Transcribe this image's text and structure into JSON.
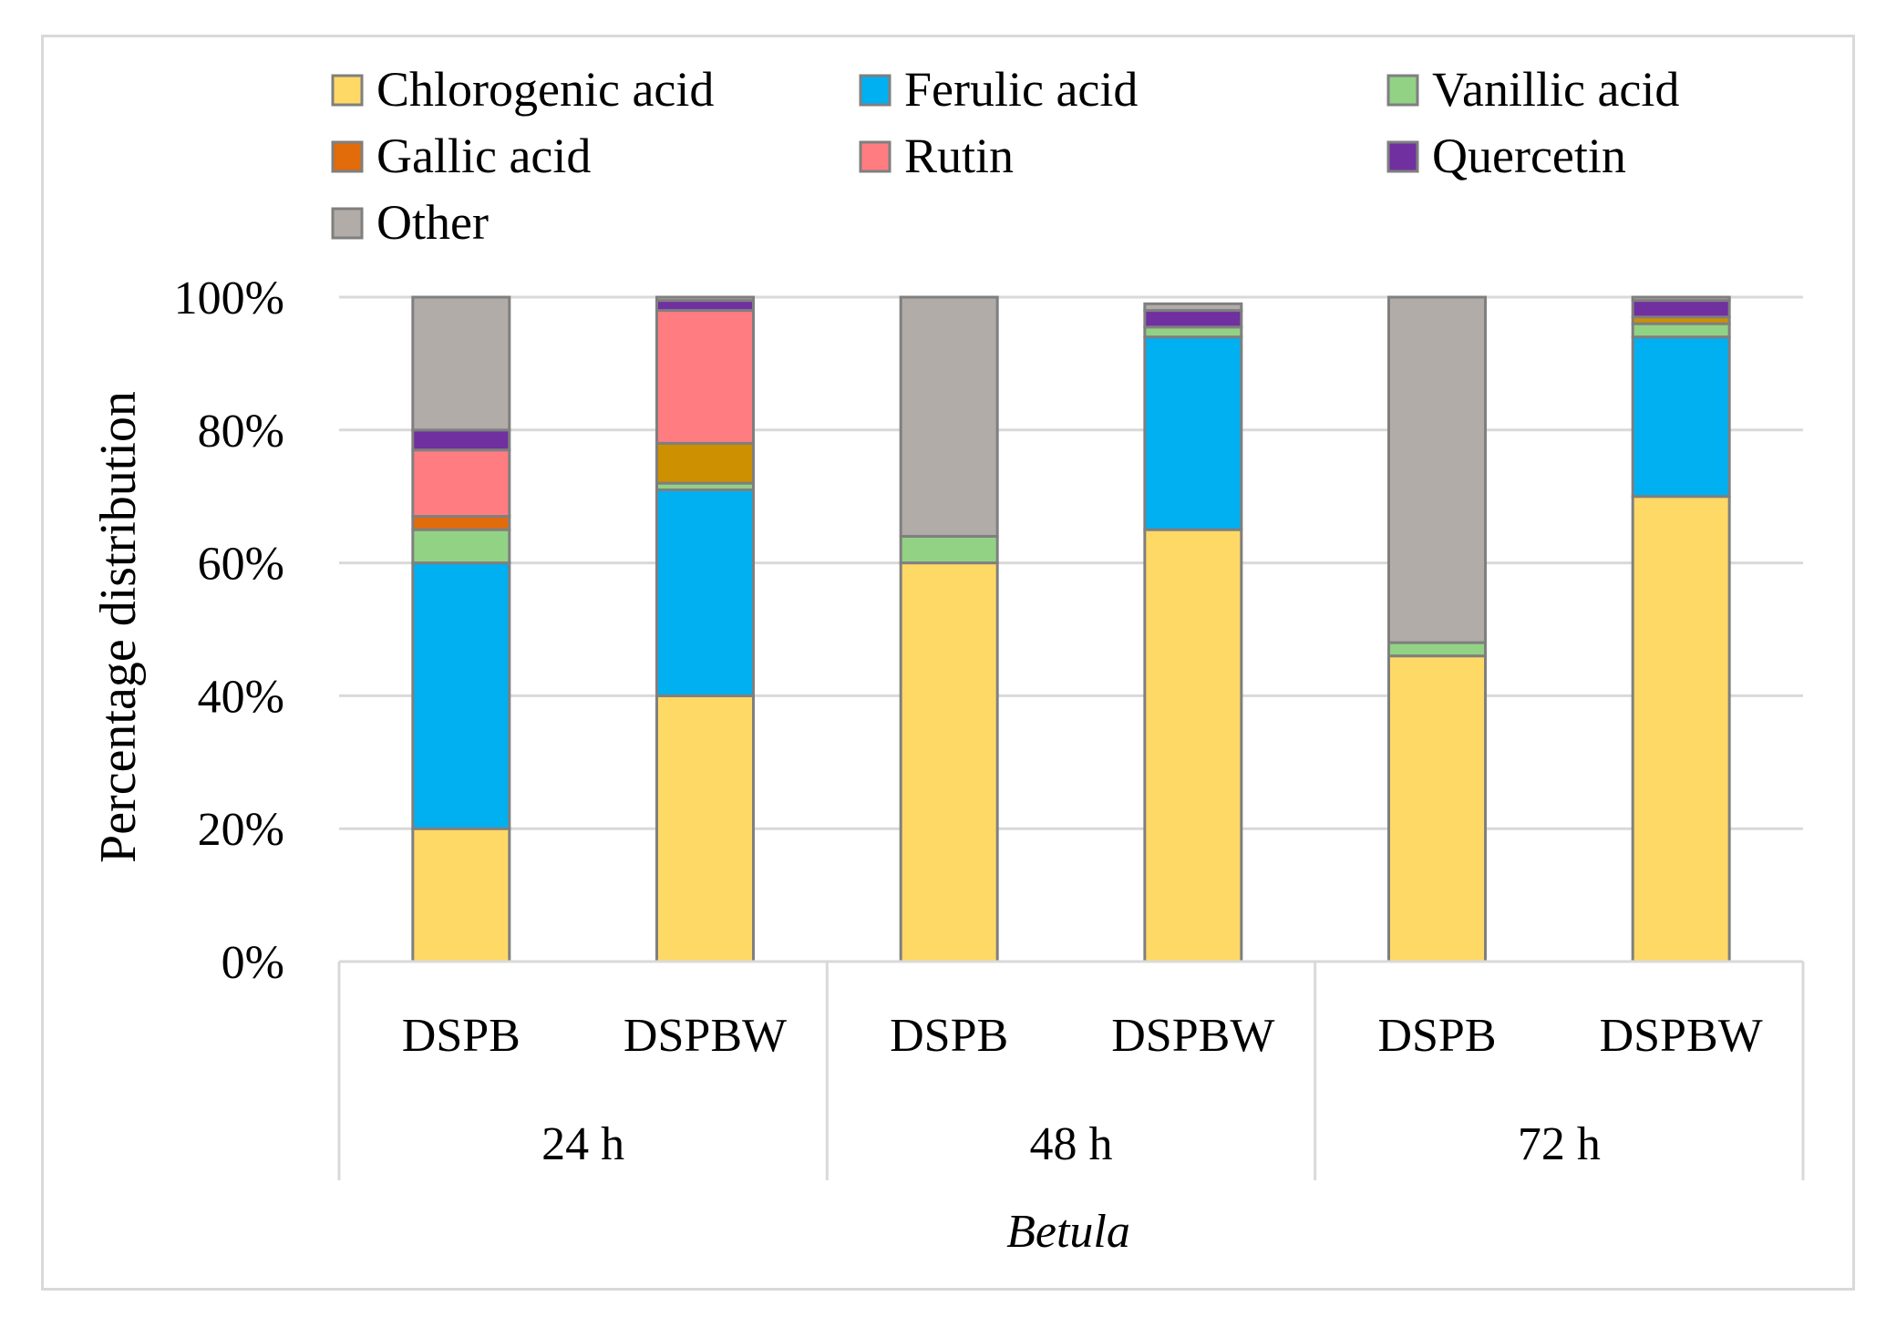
{
  "chart_data": {
    "type": "bar",
    "stacked": true,
    "ylabel": "Percentage distribution",
    "xlabel": "Betula",
    "ylim": [
      0,
      100
    ],
    "yticks": [
      "0%",
      "20%",
      "40%",
      "60%",
      "80%",
      "100%"
    ],
    "grid": true,
    "legend_position": "top",
    "categories": [
      "DSPB",
      "DSPBW",
      "DSPB",
      "DSPBW",
      "DSPB",
      "DSPBW"
    ],
    "groups": [
      {
        "label": "24 h",
        "span": 2
      },
      {
        "label": "48 h",
        "span": 2
      },
      {
        "label": "72 h",
        "span": 2
      }
    ],
    "series": [
      {
        "name": "Chlorogenic acid",
        "color": "#FFD966",
        "values": [
          20,
          40,
          60,
          65,
          46,
          70
        ]
      },
      {
        "name": "Ferulic acid",
        "color": "#00B0F0",
        "values": [
          40,
          31,
          0,
          29,
          0,
          24
        ]
      },
      {
        "name": "Vanillic acid",
        "color": "#92D285",
        "values": [
          5,
          1,
          4,
          1.5,
          2,
          2
        ]
      },
      {
        "name": "Gallic acid",
        "color": "#E26B0A",
        "values": [
          2,
          0,
          0,
          0,
          0,
          0
        ]
      },
      {
        "name": "",
        "color": "#CC9000",
        "values": [
          0,
          6,
          0,
          0,
          0,
          1
        ]
      },
      {
        "name": "Rutin",
        "color": "#FF7C80",
        "values": [
          10,
          20,
          0,
          0,
          0,
          0
        ]
      },
      {
        "name": "Quercetin",
        "color": "#7030A0",
        "values": [
          3,
          1.5,
          0,
          2.5,
          0,
          2.5
        ]
      },
      {
        "name": "Other",
        "color": "#B2ACA8",
        "values": [
          20,
          0.5,
          36,
          1,
          52,
          0.5
        ]
      }
    ],
    "legend_order": [
      "Chlorogenic acid",
      "Ferulic acid",
      "Vanillic acid",
      "Gallic acid",
      "Rutin",
      "Quercetin",
      "Other"
    ]
  },
  "colors": {
    "grid": "#d9d9d9",
    "bar_outline": "#7f7f7f",
    "text": "#000000",
    "frame": "#d9d9d9"
  }
}
